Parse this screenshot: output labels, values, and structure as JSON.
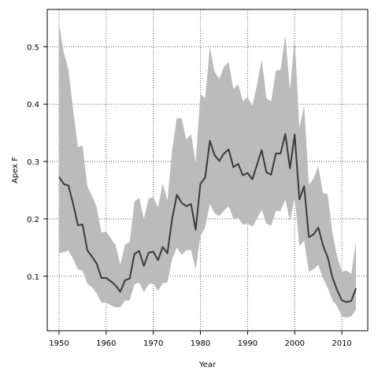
{
  "chart_data": {
    "type": "line",
    "title": "",
    "xlabel": "Year",
    "ylabel": "Apex F",
    "xlim": [
      1947.5,
      2015.5
    ],
    "ylim": [
      0.005,
      0.565
    ],
    "xticks": [
      1950,
      1960,
      1970,
      1980,
      1990,
      2000,
      2010
    ],
    "yticks": [
      0.1,
      0.2,
      0.3,
      0.4,
      0.5
    ],
    "grid": true,
    "grid_style": "dotted",
    "colors": {
      "line": "#3a3a3a",
      "band": "#bbbbbb",
      "grid": "#333333",
      "frame": "#000000"
    },
    "x": [
      1950,
      1951,
      1952,
      1953,
      1954,
      1955,
      1956,
      1957,
      1958,
      1959,
      1960,
      1961,
      1962,
      1963,
      1964,
      1965,
      1966,
      1967,
      1968,
      1969,
      1970,
      1971,
      1972,
      1973,
      1974,
      1975,
      1976,
      1977,
      1978,
      1979,
      1980,
      1981,
      1982,
      1983,
      1984,
      1985,
      1986,
      1987,
      1988,
      1989,
      1990,
      1991,
      1992,
      1993,
      1994,
      1995,
      1996,
      1997,
      1998,
      1999,
      2000,
      2001,
      2002,
      2003,
      2004,
      2005,
      2006,
      2007,
      2008,
      2009,
      2010,
      2011,
      2012,
      2013
    ],
    "series": [
      {
        "values": [
          0.273,
          0.261,
          0.258,
          0.226,
          0.189,
          0.19,
          0.145,
          0.134,
          0.122,
          0.097,
          0.097,
          0.091,
          0.084,
          0.073,
          0.093,
          0.096,
          0.139,
          0.144,
          0.118,
          0.141,
          0.143,
          0.128,
          0.151,
          0.14,
          0.2,
          0.242,
          0.228,
          0.222,
          0.226,
          0.181,
          0.261,
          0.272,
          0.336,
          0.311,
          0.301,
          0.314,
          0.321,
          0.29,
          0.296,
          0.276,
          0.28,
          0.269,
          0.294,
          0.32,
          0.281,
          0.277,
          0.314,
          0.314,
          0.348,
          0.288,
          0.347,
          0.234,
          0.257,
          0.168,
          0.173,
          0.185,
          0.154,
          0.133,
          0.098,
          0.076,
          0.058,
          0.055,
          0.057,
          0.079
        ],
        "lower": [
          0.14,
          0.142,
          0.145,
          0.13,
          0.112,
          0.11,
          0.087,
          0.081,
          0.07,
          0.054,
          0.054,
          0.049,
          0.046,
          0.046,
          0.058,
          0.058,
          0.086,
          0.089,
          0.072,
          0.086,
          0.088,
          0.074,
          0.088,
          0.089,
          0.13,
          0.15,
          0.137,
          0.145,
          0.146,
          0.112,
          0.17,
          0.185,
          0.226,
          0.21,
          0.205,
          0.214,
          0.222,
          0.2,
          0.202,
          0.19,
          0.192,
          0.186,
          0.2,
          0.216,
          0.192,
          0.188,
          0.214,
          0.214,
          0.233,
          0.196,
          0.238,
          0.152,
          0.162,
          0.108,
          0.112,
          0.12,
          0.097,
          0.08,
          0.058,
          0.048,
          0.03,
          0.028,
          0.03,
          0.042
        ],
        "upper": [
          0.54,
          0.49,
          0.46,
          0.39,
          0.325,
          0.328,
          0.257,
          0.24,
          0.22,
          0.176,
          0.178,
          0.166,
          0.154,
          0.12,
          0.155,
          0.16,
          0.23,
          0.237,
          0.2,
          0.235,
          0.238,
          0.22,
          0.262,
          0.232,
          0.32,
          0.376,
          0.375,
          0.338,
          0.348,
          0.298,
          0.418,
          0.41,
          0.5,
          0.456,
          0.444,
          0.465,
          0.473,
          0.426,
          0.435,
          0.405,
          0.412,
          0.397,
          0.433,
          0.478,
          0.41,
          0.405,
          0.458,
          0.46,
          0.52,
          0.425,
          0.515,
          0.358,
          0.398,
          0.26,
          0.27,
          0.292,
          0.245,
          0.243,
          0.175,
          0.135,
          0.108,
          0.11,
          0.104,
          0.16
        ]
      }
    ]
  }
}
